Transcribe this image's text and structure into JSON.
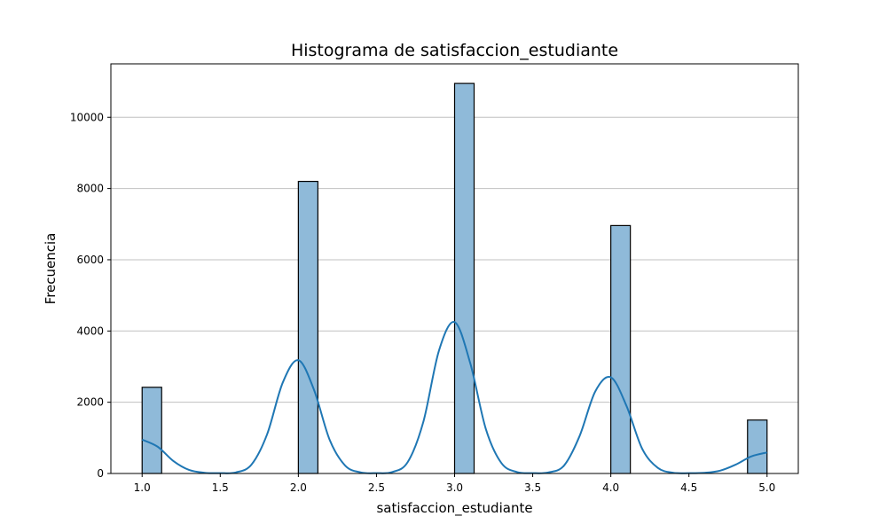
{
  "chart_data": {
    "type": "bar",
    "title": "Histograma de satisfaccion_estudiante",
    "xlabel": "satisfaccion_estudiante",
    "ylabel": "Frecuencia",
    "xlim": [
      0.8,
      5.2
    ],
    "ylim": [
      0,
      11500
    ],
    "x_ticks": [
      "1.0",
      "1.5",
      "2.0",
      "2.5",
      "3.0",
      "3.5",
      "4.0",
      "4.5",
      "5.0"
    ],
    "y_ticks": [
      "0",
      "2000",
      "4000",
      "6000",
      "8000",
      "10000"
    ],
    "grid": "horizontal",
    "bins": [
      {
        "x_start": 1.0,
        "x_end": 1.125,
        "count": 2420
      },
      {
        "x_start": 2.0,
        "x_end": 2.125,
        "count": 8200
      },
      {
        "x_start": 3.0,
        "x_end": 3.125,
        "count": 10950
      },
      {
        "x_start": 4.0,
        "x_end": 4.125,
        "count": 6960
      },
      {
        "x_start": 4.875,
        "x_end": 5.0,
        "count": 1500
      }
    ],
    "kde": {
      "x": [
        1.0,
        1.1,
        1.2,
        1.3,
        1.4,
        1.5,
        1.6,
        1.7,
        1.8,
        1.9,
        2.0,
        2.1,
        2.2,
        2.3,
        2.4,
        2.5,
        2.6,
        2.7,
        2.8,
        2.9,
        3.0,
        3.1,
        3.2,
        3.3,
        3.4,
        3.5,
        3.6,
        3.7,
        3.8,
        3.9,
        4.0,
        4.1,
        4.2,
        4.3,
        4.4,
        4.5,
        4.6,
        4.7,
        4.8,
        4.9,
        5.0
      ],
      "y": [
        950,
        750,
        350,
        100,
        20,
        10,
        30,
        250,
        1100,
        2550,
        3180,
        2350,
        950,
        220,
        30,
        10,
        40,
        320,
        1450,
        3450,
        4250,
        3100,
        1250,
        290,
        40,
        10,
        30,
        220,
        1050,
        2300,
        2700,
        1900,
        700,
        160,
        20,
        10,
        20,
        80,
        250,
        480,
        590
      ]
    },
    "colors": {
      "bar_fill": "#8fbad9",
      "bar_edge": "#000000",
      "kde_line": "#1f77b4",
      "grid": "#c0c0c0"
    }
  }
}
